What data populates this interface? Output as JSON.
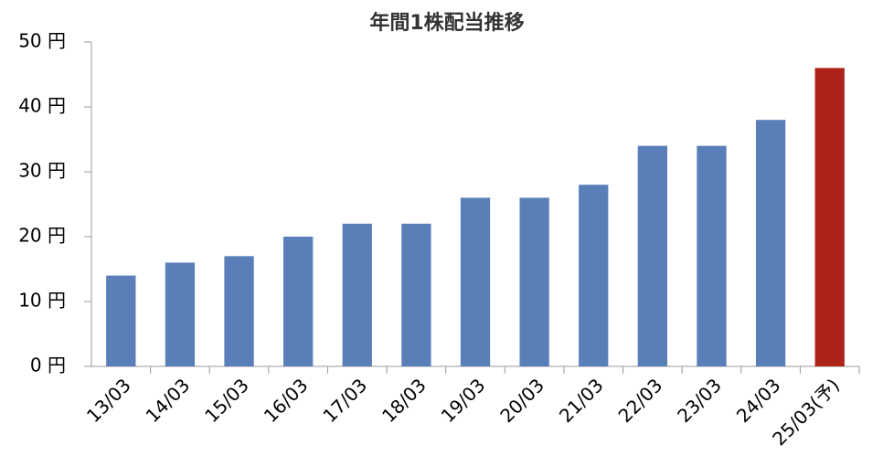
{
  "chart_data": {
    "type": "bar",
    "title": "年間1株配当推移",
    "categories": [
      "13/03",
      "14/03",
      "15/03",
      "16/03",
      "17/03",
      "18/03",
      "19/03",
      "20/03",
      "21/03",
      "22/03",
      "23/03",
      "24/03",
      "25/03(予)"
    ],
    "values": [
      14,
      16,
      17,
      20,
      22,
      22,
      26,
      26,
      28,
      34,
      34,
      38,
      46
    ],
    "colors": [
      "#5a7fb8",
      "#5a7fb8",
      "#5a7fb8",
      "#5a7fb8",
      "#5a7fb8",
      "#5a7fb8",
      "#5a7fb8",
      "#5a7fb8",
      "#5a7fb8",
      "#5a7fb8",
      "#5a7fb8",
      "#5a7fb8",
      "#ad2219"
    ],
    "ylim": [
      0,
      50
    ],
    "yticks": [
      {
        "value": 0,
        "label": "0 円"
      },
      {
        "value": 10,
        "label": "10 円"
      },
      {
        "value": 20,
        "label": "20 円"
      },
      {
        "value": 30,
        "label": "30 円"
      },
      {
        "value": 40,
        "label": "40 円"
      },
      {
        "value": 50,
        "label": "50 円"
      }
    ],
    "grid": false
  }
}
